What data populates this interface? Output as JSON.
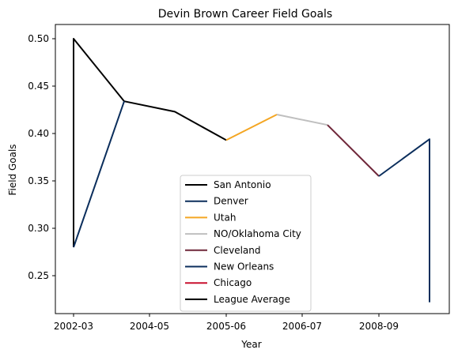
{
  "chart_data": {
    "type": "line",
    "title": "Devin Brown Career Field Goals",
    "xlabel": "Year",
    "ylabel": "Field Goals",
    "x_tick_labels": [
      "2002-03",
      "2004-05",
      "2005-06",
      "2006-07",
      "2008-09"
    ],
    "y_ticks": [
      0.25,
      0.3,
      0.35,
      0.4,
      0.45,
      0.5
    ],
    "y_tick_labels": [
      "0.25",
      "0.30",
      "0.35",
      "0.40",
      "0.45",
      "0.50"
    ],
    "ylim": [
      0.21,
      0.515
    ],
    "grid": false,
    "legend_position": "lower center",
    "series": [
      {
        "name": "San Antonio",
        "color": "#000000",
        "points": [
          [
            "2002-03",
            0.28
          ],
          [
            "2002-03",
            0.5
          ],
          [
            "2003-04",
            0.434
          ],
          [
            "2004-05",
            0.423
          ],
          [
            "2005-06",
            0.393
          ]
        ]
      },
      {
        "name": "Denver",
        "color": "#0b2e5c",
        "points": [
          [
            "2002-03",
            0.28
          ],
          [
            "2003-04",
            0.434
          ]
        ]
      },
      {
        "name": "Utah",
        "color": "#f4a623",
        "points": [
          [
            "2005-06",
            0.393
          ],
          [
            "2005-06b",
            0.42
          ]
        ]
      },
      {
        "name": "NO/Oklahoma City",
        "color": "#bfbfbf",
        "points": [
          [
            "2005-06b",
            0.42
          ],
          [
            "2006-07",
            0.409
          ]
        ]
      },
      {
        "name": "Cleveland",
        "color": "#6f2639",
        "points": [
          [
            "2006-07",
            0.409
          ],
          [
            "2008-09",
            0.355
          ]
        ]
      },
      {
        "name": "New Orleans",
        "color": "#0b2e5c",
        "points": [
          [
            "2008-09",
            0.355
          ],
          [
            "2009-10",
            0.394
          ],
          [
            "2009-10",
            0.222
          ]
        ]
      },
      {
        "name": "Chicago",
        "color": "#c8102e",
        "points": []
      },
      {
        "name": "League Average",
        "color": "#000000",
        "points": []
      }
    ]
  }
}
